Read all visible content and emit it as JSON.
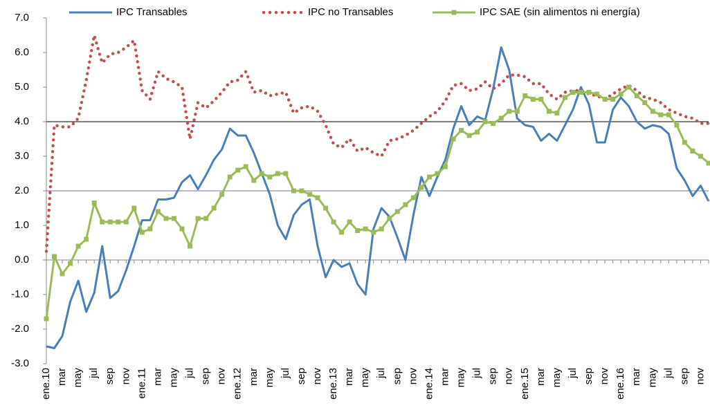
{
  "chart_data": {
    "type": "line",
    "categories": [
      "ene.10",
      null,
      "mar",
      null,
      "may",
      null,
      "jul",
      null,
      "sep",
      null,
      "nov",
      null,
      "ene.11",
      null,
      "mar",
      null,
      "may",
      null,
      "jul",
      null,
      "sep",
      null,
      "nov",
      null,
      "ene.12",
      null,
      "mar",
      null,
      "may",
      null,
      "jul",
      null,
      "sep",
      null,
      "nov",
      null,
      "ene.13",
      null,
      "mar",
      null,
      "may",
      null,
      "jul",
      null,
      "sep",
      null,
      "nov",
      null,
      "ene.14",
      null,
      "mar",
      null,
      "may",
      null,
      "jul",
      null,
      "sep",
      null,
      "nov",
      null,
      "ene.15",
      null,
      "mar",
      null,
      "may",
      null,
      "jul",
      null,
      "sep",
      null,
      "nov",
      null,
      "ene.16",
      null,
      "mar",
      null,
      "may",
      null,
      "jul",
      null,
      "sep",
      null,
      "nov",
      null
    ],
    "series": [
      {
        "name": "IPC Transables",
        "color": "#4a7ebb",
        "style": "solid",
        "values": [
          -2.5,
          -2.55,
          -2.2,
          -1.2,
          -0.6,
          -1.5,
          -0.95,
          0.4,
          -1.1,
          -0.9,
          -0.3,
          0.4,
          1.15,
          1.15,
          1.75,
          1.75,
          1.8,
          2.25,
          2.45,
          2.05,
          2.45,
          2.9,
          3.2,
          3.8,
          3.6,
          3.6,
          3.1,
          2.5,
          1.9,
          1.0,
          0.6,
          1.3,
          1.6,
          1.75,
          0.4,
          -0.5,
          0.0,
          -0.2,
          -0.1,
          -0.7,
          -1.0,
          0.9,
          1.5,
          1.25,
          0.65,
          0.0,
          1.3,
          2.4,
          1.85,
          2.4,
          2.9,
          3.8,
          4.45,
          3.9,
          4.15,
          4.05,
          4.95,
          6.15,
          5.5,
          4.1,
          3.9,
          3.85,
          3.45,
          3.65,
          3.45,
          3.9,
          4.35,
          5.0,
          4.5,
          3.4,
          3.4,
          4.35,
          4.7,
          4.45,
          4.0,
          3.8,
          3.9,
          3.85,
          3.65,
          2.65,
          2.3,
          1.85,
          2.15,
          1.7
        ]
      },
      {
        "name": "IPC no Transables",
        "color": "#c0504d",
        "style": "dotted",
        "values": [
          0.25,
          3.9,
          3.85,
          3.85,
          4.1,
          5.2,
          6.5,
          5.7,
          5.95,
          6.0,
          6.15,
          6.35,
          4.9,
          4.65,
          5.45,
          5.25,
          5.15,
          5.0,
          3.5,
          4.55,
          4.4,
          4.6,
          4.85,
          5.15,
          5.2,
          5.45,
          4.85,
          4.9,
          4.75,
          4.8,
          4.85,
          4.25,
          4.4,
          4.45,
          4.3,
          3.9,
          3.35,
          3.25,
          3.5,
          3.15,
          3.25,
          3.1,
          3.0,
          3.45,
          3.5,
          3.6,
          3.75,
          3.95,
          4.15,
          4.3,
          4.6,
          5.05,
          5.1,
          4.9,
          4.95,
          5.15,
          4.95,
          5.1,
          5.35,
          5.35,
          5.3,
          5.1,
          5.1,
          4.8,
          4.65,
          4.85,
          4.9,
          4.9,
          4.8,
          4.75,
          4.65,
          4.8,
          4.95,
          5.05,
          4.9,
          4.7,
          4.65,
          4.55,
          4.35,
          4.25,
          4.15,
          4.1,
          3.95,
          3.95
        ]
      },
      {
        "name": "IPC SAE (sin alimentos ni energía)",
        "color": "#9bbb59",
        "style": "markers",
        "values": [
          -1.7,
          0.1,
          -0.4,
          -0.1,
          0.4,
          0.6,
          1.65,
          1.1,
          1.1,
          1.1,
          1.1,
          1.5,
          0.8,
          0.9,
          1.4,
          1.2,
          1.2,
          0.9,
          0.4,
          1.2,
          1.2,
          1.5,
          1.9,
          2.4,
          2.6,
          2.7,
          2.3,
          2.5,
          2.4,
          2.5,
          2.5,
          2.0,
          2.0,
          1.9,
          1.8,
          1.5,
          1.1,
          0.8,
          1.1,
          0.85,
          0.9,
          0.8,
          0.9,
          1.2,
          1.4,
          1.6,
          1.8,
          2.1,
          2.4,
          2.5,
          2.7,
          3.5,
          3.75,
          3.6,
          3.7,
          4.0,
          3.95,
          4.1,
          4.3,
          4.3,
          4.75,
          4.65,
          4.65,
          4.3,
          4.25,
          4.7,
          4.85,
          4.85,
          4.85,
          4.8,
          4.65,
          4.65,
          4.8,
          5.0,
          4.75,
          4.55,
          4.3,
          4.2,
          4.2,
          3.9,
          3.4,
          3.15,
          3.0,
          2.8
        ]
      }
    ],
    "ylim": [
      -3,
      7
    ],
    "yticks": [
      {
        "value": -3,
        "label": "-3.0"
      },
      {
        "value": -2,
        "label": "-2.0"
      },
      {
        "value": -1,
        "label": "-1.0"
      },
      {
        "value": 0,
        "label": "0.0"
      },
      {
        "value": 1,
        "label": "1.0"
      },
      {
        "value": 2,
        "label": "2.0"
      },
      {
        "value": 3,
        "label": "3.0"
      },
      {
        "value": 4,
        "label": "4.0"
      },
      {
        "value": 5,
        "label": "5.0"
      },
      {
        "value": 6,
        "label": "6.0"
      },
      {
        "value": 7,
        "label": "7.0"
      }
    ],
    "reference_lines": [
      {
        "value": 4,
        "color": "#000000"
      },
      {
        "value": 2,
        "color": "#7b68a6"
      }
    ],
    "legend": "top"
  }
}
